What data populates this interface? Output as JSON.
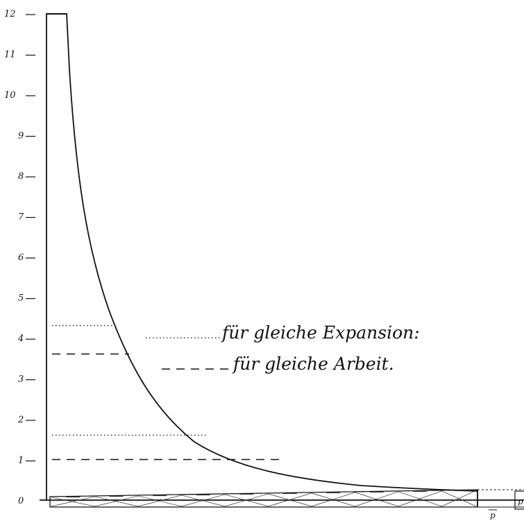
{
  "y_axis": {
    "ticks": [
      "0",
      "1",
      "2",
      "3",
      "4",
      "5",
      "6",
      "7",
      "8",
      "9",
      "10",
      "11",
      "12"
    ]
  },
  "legend": {
    "expansion": "für gleiche Expansion:",
    "arbeit": "für gleiche Arbeit."
  },
  "labels": {
    "p_inner": "p",
    "p_outer": "p"
  },
  "chart_data": {
    "type": "line",
    "ylim": [
      0,
      12
    ],
    "reference_levels": [
      {
        "legend": "für gleiche Expansion:",
        "style": "dotted",
        "y_values": [
          4.3,
          1.6
        ]
      },
      {
        "legend": "für gleiche Arbeit.",
        "style": "dashed",
        "y_values": [
          3.6,
          1.0
        ]
      }
    ],
    "curve_y_values": [
      12,
      9,
      6,
      4.3,
      3.6,
      2.5,
      1.6,
      1.0,
      0.8,
      0.7
    ],
    "base_band": {
      "y_min": 0.1,
      "y_max": 0.6,
      "pattern": "cross-hatched"
    }
  }
}
